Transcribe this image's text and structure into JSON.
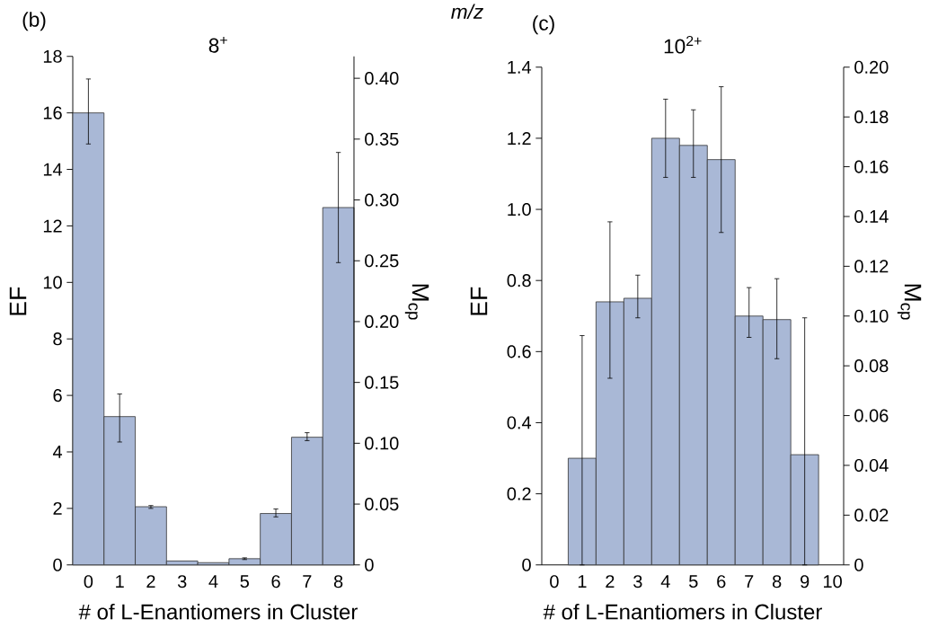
{
  "chart_data": [
    {
      "type": "bar",
      "title": "8$^{+}$",
      "xlabel": "# of L-Enantiomers in Cluster",
      "ylabel": "EF",
      "y2label": "M$_{cp}$",
      "annotations": [
        "(b)",
        "m/z"
      ],
      "categories": [
        "0",
        "1",
        "2",
        "3",
        "4",
        "5",
        "6",
        "7",
        "8"
      ],
      "values": [
        16.0,
        5.25,
        2.06,
        0.14,
        0.08,
        0.22,
        1.82,
        4.52,
        12.65
      ],
      "errors": [
        [
          14.9,
          17.2
        ],
        [
          4.35,
          6.05
        ],
        [
          2.0,
          2.1
        ],
        null,
        null,
        [
          0.19,
          0.25
        ],
        [
          1.7,
          1.98
        ],
        [
          4.4,
          4.68
        ],
        [
          10.7,
          14.6
        ]
      ],
      "color": "#a9b8d6",
      "ylim": [
        0,
        18
      ],
      "yticks": [
        0,
        2,
        4,
        6,
        8,
        10,
        12,
        14,
        16,
        18
      ],
      "y2lim": [
        0,
        0.418
      ],
      "y2ticks": [
        0,
        0.05,
        {
          "value": 0.1,
          "label": "0.10"
        },
        0.15,
        {
          "value": 0.2,
          "label": "0.20"
        },
        0.25,
        {
          "value": 0.3,
          "label": "0.30"
        },
        0.35,
        {
          "value": 0.4,
          "label": "0.40"
        }
      ]
    },
    {
      "type": "bar",
      "title": "10$^{2+}$",
      "xlabel": "# of L-Enantiomers in Cluster",
      "ylabel": "EF",
      "y2label": "M$_{cp}$",
      "annotations": [
        "(c)"
      ],
      "categories": [
        "0",
        "1",
        "2",
        "3",
        "4",
        "5",
        "6",
        "7",
        "8",
        "9",
        "10"
      ],
      "values": [
        null,
        0.3,
        0.74,
        0.75,
        1.2,
        1.18,
        1.14,
        0.7,
        0.69,
        0.31,
        null
      ],
      "errors": [
        null,
        [
          0,
          0.645
        ],
        [
          0.525,
          0.965
        ],
        [
          0.695,
          0.815
        ],
        [
          1.09,
          1.31
        ],
        [
          1.09,
          1.28
        ],
        [
          0.935,
          1.345
        ],
        [
          0.64,
          0.78
        ],
        [
          0.58,
          0.805
        ],
        [
          0,
          0.695
        ],
        null
      ],
      "color": "#a9b8d6",
      "ylim": [
        0,
        1.4
      ],
      "yticks": [
        0,
        0.2,
        0.4,
        0.6,
        0.8,
        {
          "value": 1.0,
          "label": "1.0"
        },
        1.2,
        1.4
      ],
      "y2lim": [
        0,
        0.2
      ],
      "y2ticks": [
        0,
        0.02,
        0.04,
        0.06,
        0.08,
        {
          "value": 0.1,
          "label": "0.10"
        },
        0.12,
        0.14,
        0.16,
        0.18,
        {
          "value": 0.2,
          "label": "0.20"
        }
      ]
    }
  ]
}
